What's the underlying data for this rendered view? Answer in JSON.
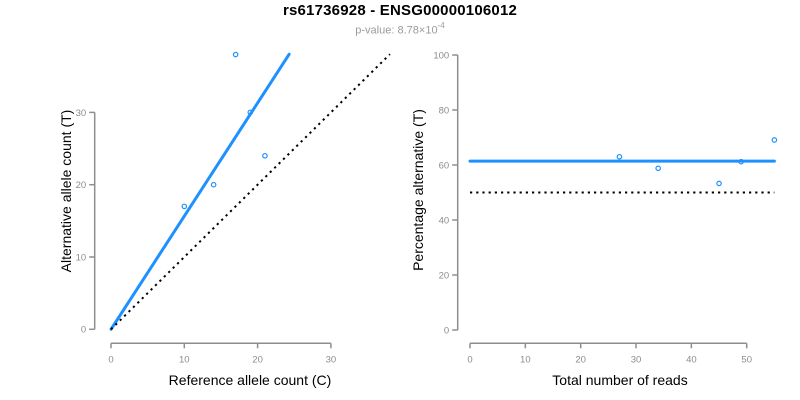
{
  "header": {
    "title": "rs61736928 - ENSG00000106012",
    "pvalue_prefix": "p-value: ",
    "pvalue_mantissa": "8.78",
    "pvalue_times": "×10",
    "pvalue_exponent": "-4"
  },
  "colors": {
    "accent_blue": "#1E90FF",
    "axis_gray": "#8E8E8E",
    "label_gray": "#8C8C8C",
    "title_black": "#000000",
    "subtitle_gray": "#9B9B9B",
    "line_black": "#000000",
    "background": "#FFFFFF"
  },
  "chart_data": [
    {
      "type": "scatter",
      "panel": "left",
      "xlabel": "Reference allele count (C)",
      "ylabel": "Alternative allele count (T)",
      "xticks": [
        0,
        10,
        20,
        30
      ],
      "yticks": [
        0,
        10,
        20,
        30
      ],
      "xlim": [
        0,
        38
      ],
      "ylim": [
        0,
        38
      ],
      "grid": false,
      "points": [
        [
          10,
          17
        ],
        [
          14,
          20
        ],
        [
          17,
          38
        ],
        [
          19,
          30
        ],
        [
          21,
          24
        ]
      ],
      "lines": [
        {
          "name": "fit-line",
          "x1": 0,
          "y1": 0,
          "x2": 24.31,
          "y2": 38.05,
          "color": "accent_blue",
          "style": "solid",
          "width": 3,
          "slope": 1.565
        },
        {
          "name": "identity-line",
          "x1": 0,
          "y1": 0,
          "x2": 38.05,
          "y2": 38.05,
          "color": "line_black",
          "style": "dotted",
          "width": 2,
          "slope": 1
        }
      ]
    },
    {
      "type": "scatter",
      "panel": "right",
      "xlabel": "Total number of reads",
      "ylabel": "Percentage alternative (T)",
      "xticks": [
        0,
        10,
        20,
        30,
        40,
        50
      ],
      "yticks": [
        0,
        20,
        40,
        60,
        80,
        100
      ],
      "xlim": [
        0,
        55
      ],
      "ylim": [
        0,
        100
      ],
      "grid": false,
      "points": [
        [
          27,
          63.0
        ],
        [
          34,
          58.8
        ],
        [
          45,
          53.3
        ],
        [
          49,
          61.2
        ],
        [
          55,
          69.1
        ]
      ],
      "lines": [
        {
          "name": "mean-line",
          "x1": 0,
          "y1": 61.4,
          "x2": 55,
          "y2": 61.4,
          "color": "accent_blue",
          "style": "solid",
          "width": 3
        },
        {
          "name": "null-line",
          "x1": 0,
          "y1": 50,
          "x2": 55,
          "y2": 50,
          "color": "line_black",
          "style": "dotted",
          "width": 2
        }
      ]
    }
  ]
}
